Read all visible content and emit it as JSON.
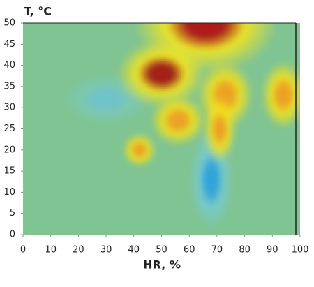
{
  "chart_data": {
    "type": "heatmap",
    "title": "T, °C",
    "x_label": "HR, %",
    "xlim": [
      0,
      100
    ],
    "ylim": [
      0,
      50
    ],
    "xticks": [
      0,
      10,
      20,
      30,
      40,
      50,
      60,
      70,
      80,
      90,
      100
    ],
    "yticks": [
      0,
      5,
      10,
      15,
      20,
      25,
      30,
      35,
      40,
      45,
      50
    ],
    "background": "#80c493",
    "peaks": [
      {
        "x": 30,
        "y": 32,
        "rx": 8,
        "ry": 3,
        "color": "#6ec3cc",
        "halo": "#7cc8b4"
      },
      {
        "x": 68,
        "y": 13,
        "rx": 4,
        "ry": 6,
        "color": "#2fa3dc",
        "halo": "#76cbd0"
      },
      {
        "x": 66,
        "y": 50,
        "rx": 13,
        "ry": 6,
        "color": "#b01515",
        "halo": "#f5e61e"
      },
      {
        "x": 50,
        "y": 38,
        "rx": 8,
        "ry": 4,
        "color": "#a51a14",
        "halo": "#f5e61e"
      },
      {
        "x": 73,
        "y": 33,
        "rx": 5,
        "ry": 4,
        "color": "#f0a020",
        "halo": "#f2e21e"
      },
      {
        "x": 94,
        "y": 33,
        "rx": 4,
        "ry": 4,
        "color": "#f0a020",
        "halo": "#f2e21e"
      },
      {
        "x": 56,
        "y": 27,
        "rx": 5,
        "ry": 3,
        "color": "#f0a020",
        "halo": "#f2e21e"
      },
      {
        "x": 71,
        "y": 25,
        "rx": 3,
        "ry": 4,
        "color": "#f0a020",
        "halo": "#f2e21e"
      },
      {
        "x": 42,
        "y": 20,
        "rx": 3,
        "ry": 2,
        "color": "#f0a020",
        "halo": "#f2e21e"
      }
    ]
  }
}
